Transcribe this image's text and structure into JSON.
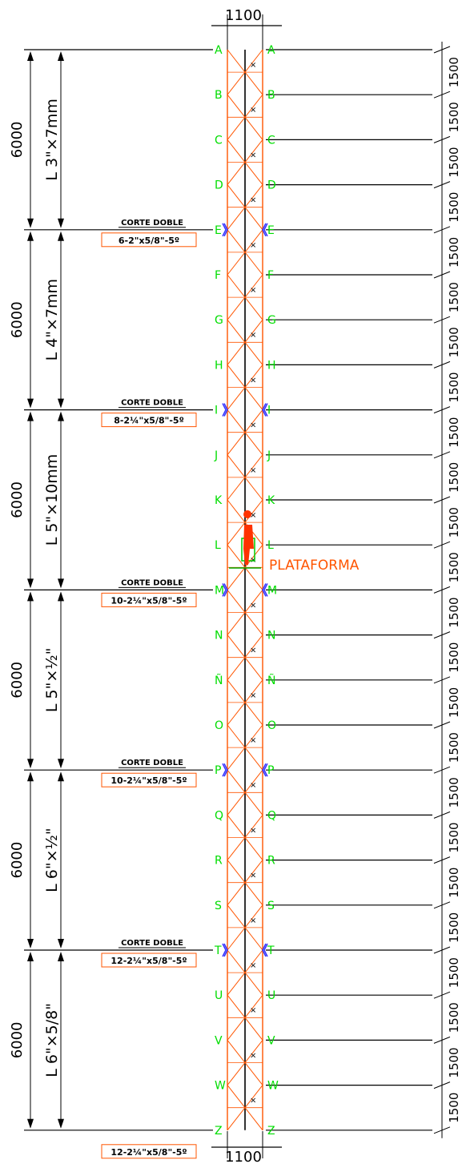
{
  "top_dimension": "1100",
  "bottom_dimension": "1100",
  "platform_label": "PLATAFORMA",
  "cut_label": "CORTE DOBLE",
  "section_length": "6000",
  "segment_length": "1500",
  "levels": [
    "A",
    "B",
    "C",
    "D",
    "E",
    "F",
    "G",
    "H",
    "I",
    "J",
    "K",
    "L",
    "M",
    "N",
    "Ñ",
    "O",
    "P",
    "Q",
    "R",
    "S",
    "T",
    "U",
    "V",
    "W",
    "Z"
  ],
  "sections": [
    {
      "profile": "L  3\"×7mm",
      "length": "6000"
    },
    {
      "profile": "L  4\"×7mm",
      "length": "6000"
    },
    {
      "profile": "L  5\"×10mm",
      "length": "6000"
    },
    {
      "profile": "L  5\"×½\"",
      "length": "6000"
    },
    {
      "profile": "L  6\"×½\"",
      "length": "6000"
    },
    {
      "profile": "L  6\"×5/8\"",
      "length": "6000"
    }
  ],
  "joints": [
    {
      "level": "E",
      "title": "CORTE DOBLE",
      "bolts": "6-2\"x5/8\"-5º"
    },
    {
      "level": "I",
      "title": "CORTE DOBLE",
      "bolts": "8-2¼\"x5/8\"-5º"
    },
    {
      "level": "M",
      "title": "CORTE DOBLE",
      "bolts": "10-2¼\"x5/8\"-5º"
    },
    {
      "level": "P",
      "title": "CORTE DOBLE",
      "bolts": "10-2¼\"x5/8\"-5º"
    },
    {
      "level": "T",
      "title": "CORTE DOBLE",
      "bolts": "12-2¼\"x5/8\"-5º"
    },
    {
      "level": "Z",
      "title": "",
      "bolts": "12-2¼\"x5/8\"-5º"
    }
  ],
  "colors": {
    "structure": "#ff5500",
    "level_labels": "#00dd00",
    "bolts": "#3333ff",
    "lines": "#000000"
  }
}
